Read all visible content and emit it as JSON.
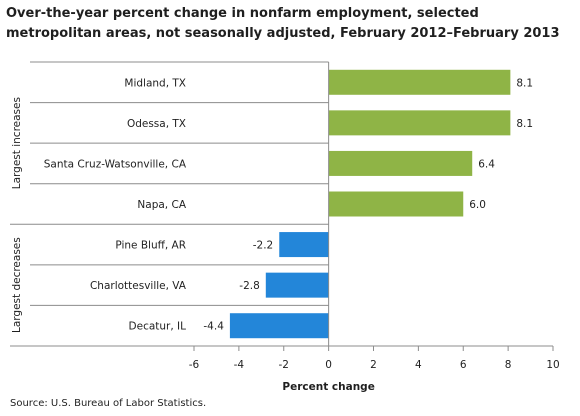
{
  "title": "Over-the-year percent change in nonfarm employment, selected metropolitan areas, not seasonally adjusted, February 2012–February 2013",
  "source": "Source:  U.S. Bureau of Labor Statistics.",
  "chart_data": {
    "type": "bar",
    "orientation": "horizontal",
    "categories": [
      "Midland, TX",
      "Odessa, TX",
      "Santa Cruz-Watsonville,  CA",
      "Napa, CA",
      "Pine Bluff, AR",
      "Charlottesville, VA",
      "Decatur, IL"
    ],
    "values": [
      8.1,
      8.1,
      6.4,
      6.0,
      -2.2,
      -2.8,
      -4.4
    ],
    "data_labels": [
      "8.1",
      "8.1",
      "6.4",
      "6.0",
      "-2.2",
      "-2.8",
      "-4.4"
    ],
    "groups": [
      {
        "label": "Largest increases",
        "categories": [
          "Midland, TX",
          "Odessa, TX",
          "Santa Cruz-Watsonville,  CA",
          "Napa, CA"
        ]
      },
      {
        "label": "Largest decreases",
        "categories": [
          "Pine Bluff, AR",
          "Charlottesville, VA",
          "Decatur, IL"
        ]
      }
    ],
    "xlabel": "Percent change",
    "xlim": [
      -6,
      10
    ],
    "xticks": [
      -6,
      -4,
      -2,
      0,
      2,
      4,
      6,
      8,
      10
    ],
    "xtick_labels": [
      "-6",
      "-4",
      "-2",
      "0",
      "2",
      "4",
      "6",
      "8",
      "10"
    ],
    "colors": {
      "positive": "#8fb446",
      "negative": "#2386d9",
      "axis": "#8c8c8c"
    },
    "grid": false
  }
}
